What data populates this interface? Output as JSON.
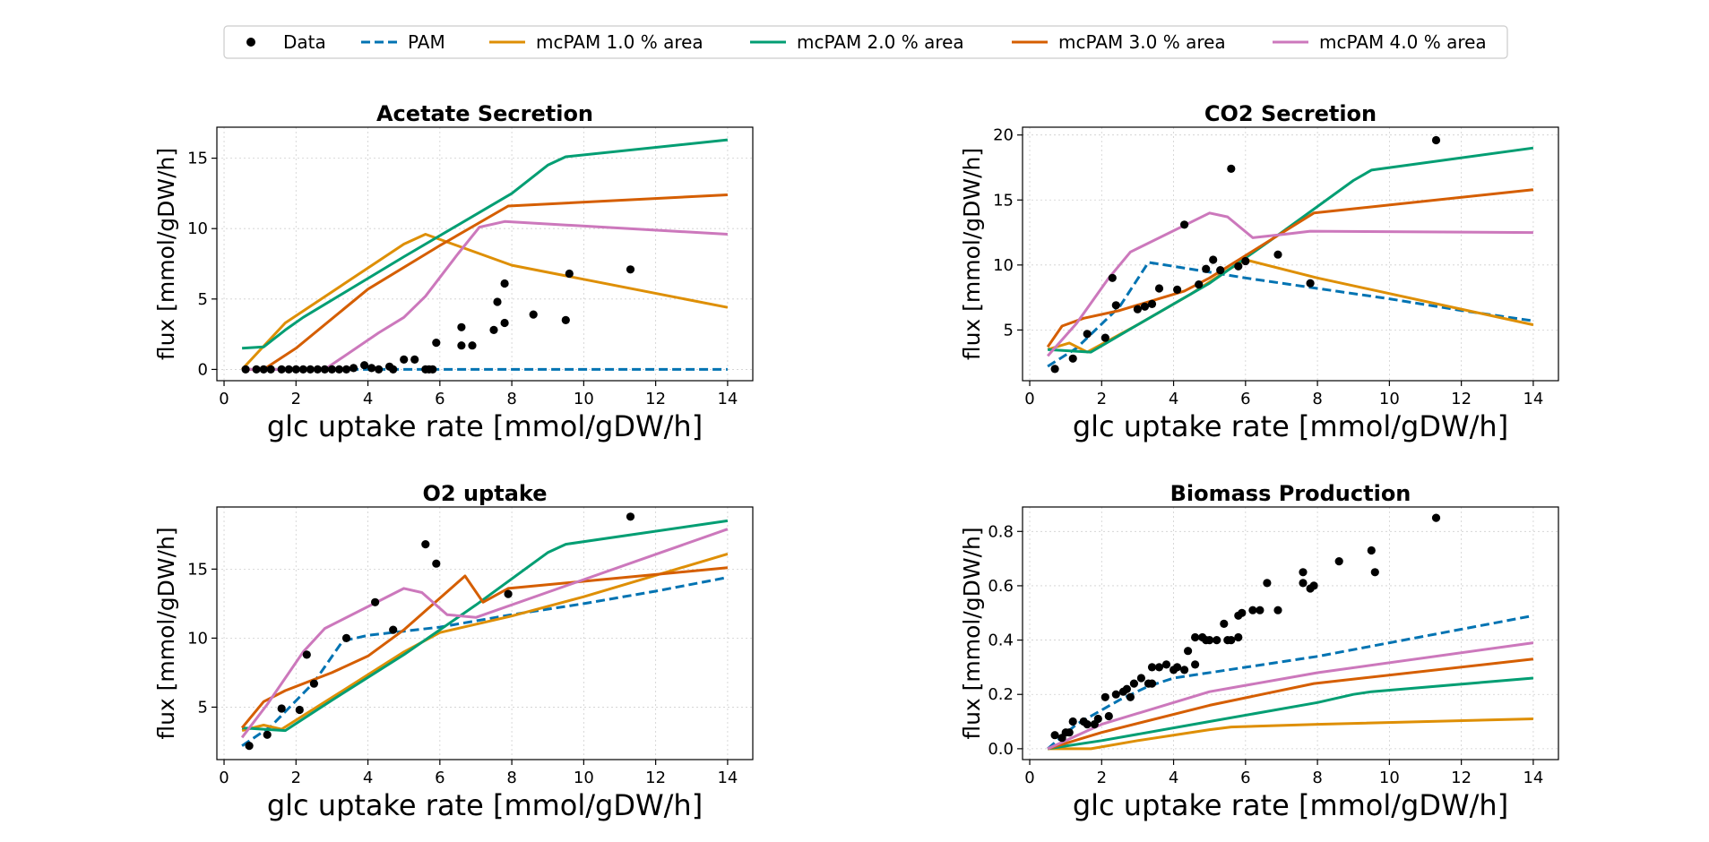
{
  "legend": {
    "entries": [
      {
        "label": "Data",
        "kind": "marker",
        "color": "#000000"
      },
      {
        "label": "PAM",
        "kind": "dashed",
        "color": "#0173b2"
      },
      {
        "label": "mcPAM 1.0 % area",
        "kind": "line",
        "color": "#de8f05"
      },
      {
        "label": "mcPAM 2.0 % area",
        "kind": "line",
        "color": "#029e73"
      },
      {
        "label": "mcPAM 3.0 % area",
        "kind": "line",
        "color": "#d55e00"
      },
      {
        "label": "mcPAM 4.0 % area",
        "kind": "line",
        "color": "#cc78bc"
      }
    ]
  },
  "chart_data": [
    {
      "type": "line",
      "title": "Acetate Secretion",
      "xlabel": "glc uptake rate [mmol/gDW/h]",
      "ylabel": "flux [mmol/gDW/h]",
      "xlim": [
        -0.2,
        14.7
      ],
      "ylim": [
        -0.8,
        17.2
      ],
      "xticks": [
        0,
        2,
        4,
        6,
        8,
        10,
        12,
        14
      ],
      "yticks": [
        0,
        5,
        10,
        15
      ],
      "grid": true,
      "scatter": {
        "name": "Data",
        "x": [
          0.6,
          0.9,
          1.1,
          1.3,
          1.6,
          1.8,
          2.0,
          2.2,
          2.4,
          2.6,
          2.8,
          3.0,
          3.2,
          3.4,
          3.6,
          3.9,
          4.1,
          4.3,
          4.6,
          4.7,
          5.0,
          5.3,
          5.6,
          5.7,
          5.8,
          5.9,
          6.6,
          6.6,
          6.9,
          7.5,
          7.6,
          7.8,
          7.8,
          8.6,
          9.5,
          9.6,
          11.3
        ],
        "y": [
          0.0,
          0.0,
          0.0,
          0.0,
          0.0,
          0.0,
          0.0,
          0.0,
          0.0,
          0.0,
          0.0,
          0.0,
          0.0,
          0.0,
          0.1,
          0.3,
          0.1,
          0.0,
          0.2,
          0.0,
          0.7,
          0.7,
          0.0,
          0.0,
          0.0,
          1.9,
          1.7,
          3.0,
          1.7,
          2.8,
          4.8,
          3.3,
          6.1,
          3.9,
          3.5,
          6.8,
          7.1
        ]
      },
      "series": [
        {
          "name": "PAM",
          "x": [
            0.5,
            2,
            4,
            6,
            8,
            10,
            12,
            14
          ],
          "y": [
            0,
            0,
            0,
            0,
            0,
            0,
            0,
            0
          ]
        },
        {
          "name": "mcPAM 1.0 % area",
          "x": [
            0.5,
            1.7,
            5.0,
            5.6,
            8.0,
            14.0
          ],
          "y": [
            0,
            3.3,
            8.9,
            9.6,
            7.4,
            4.4
          ]
        },
        {
          "name": "mcPAM 2.0 % area",
          "x": [
            0.5,
            1.1,
            1.7,
            2.2,
            5.0,
            8.0,
            9.0,
            9.5,
            14.0
          ],
          "y": [
            1.5,
            1.6,
            2.8,
            3.7,
            8.0,
            12.5,
            14.5,
            15.1,
            16.3
          ]
        },
        {
          "name": "mcPAM 3.0 % area",
          "x": [
            0.5,
            1.1,
            2.0,
            4.0,
            6.0,
            7.9,
            14.0
          ],
          "y": [
            0,
            0,
            1.5,
            5.7,
            8.8,
            11.6,
            12.4
          ]
        },
        {
          "name": "mcPAM 4.0 % area",
          "x": [
            0.5,
            2.0,
            2.8,
            4.3,
            5.0,
            5.6,
            6.5,
            7.1,
            7.8,
            14.0
          ],
          "y": [
            0,
            0,
            0,
            2.6,
            3.7,
            5.2,
            8.2,
            10.1,
            10.5,
            9.6
          ]
        }
      ]
    },
    {
      "type": "line",
      "title": "CO2 Secretion",
      "xlabel": "glc uptake rate [mmol/gDW/h]",
      "ylabel": "flux [mmol/gDW/h]",
      "xlim": [
        -0.2,
        14.7
      ],
      "ylim": [
        1.1,
        20.6
      ],
      "xticks": [
        0,
        2,
        4,
        6,
        8,
        10,
        12,
        14
      ],
      "yticks": [
        5,
        10,
        15,
        20
      ],
      "grid": true,
      "scatter": {
        "name": "Data",
        "x": [
          0.7,
          1.2,
          1.6,
          2.1,
          2.3,
          2.4,
          3.0,
          3.2,
          3.4,
          3.6,
          4.1,
          4.3,
          4.7,
          4.9,
          5.1,
          5.3,
          5.6,
          5.8,
          6.0,
          6.9,
          7.8,
          11.3
        ],
        "y": [
          2.0,
          2.8,
          4.7,
          4.4,
          9.0,
          6.9,
          6.6,
          6.8,
          7.0,
          8.2,
          8.1,
          13.1,
          8.5,
          9.7,
          10.4,
          9.6,
          17.4,
          9.9,
          10.3,
          10.8,
          8.6,
          19.6
        ]
      },
      "series": [
        {
          "name": "PAM",
          "x": [
            0.5,
            1.3,
            2.5,
            3.3,
            4.0,
            6.0,
            8.0,
            10.0,
            12.0,
            14.0
          ],
          "y": [
            2.2,
            3.6,
            6.8,
            10.2,
            9.9,
            9.0,
            8.2,
            7.4,
            6.5,
            5.7
          ]
        },
        {
          "name": "mcPAM 1.0 % area",
          "x": [
            0.5,
            1.1,
            1.6,
            3.0,
            4.5,
            5.5,
            6.0,
            8.0,
            14.0
          ],
          "y": [
            3.5,
            4.0,
            3.3,
            5.4,
            7.8,
            9.6,
            10.4,
            9.0,
            5.4
          ]
        },
        {
          "name": "mcPAM 2.0 % area",
          "x": [
            0.5,
            1.7,
            3.0,
            5.0,
            7.0,
            9.0,
            9.5,
            14.0
          ],
          "y": [
            3.5,
            3.3,
            5.4,
            8.6,
            12.5,
            16.5,
            17.3,
            19.0
          ]
        },
        {
          "name": "mcPAM 3.0 % area",
          "x": [
            0.5,
            0.9,
            1.5,
            2.5,
            4.3,
            5.0,
            7.9,
            14.0
          ],
          "y": [
            3.7,
            5.3,
            5.9,
            6.5,
            8.0,
            9.0,
            14.0,
            15.8
          ]
        },
        {
          "name": "mcPAM 4.0 % area",
          "x": [
            0.5,
            1.3,
            2.2,
            2.8,
            5.0,
            5.5,
            6.2,
            7.2,
            7.8,
            14.0
          ],
          "y": [
            3.0,
            5.5,
            9.0,
            11.0,
            14.0,
            13.7,
            12.1,
            12.4,
            12.6,
            12.5
          ]
        }
      ]
    },
    {
      "type": "line",
      "title": "O2 uptake",
      "xlabel": "glc uptake rate [mmol/gDW/h]",
      "ylabel": "flux [mmol/gDW/h]",
      "xlim": [
        -0.2,
        14.7
      ],
      "ylim": [
        1.2,
        19.5
      ],
      "xticks": [
        0,
        2,
        4,
        6,
        8,
        10,
        12,
        14
      ],
      "yticks": [
        5,
        10,
        15
      ],
      "grid": true,
      "scatter": {
        "name": "Data",
        "x": [
          0.7,
          1.2,
          1.6,
          2.1,
          2.3,
          2.5,
          3.4,
          4.2,
          4.7,
          5.6,
          5.9,
          7.9,
          11.3
        ],
        "y": [
          2.2,
          3.0,
          4.9,
          4.8,
          8.8,
          6.7,
          10.0,
          12.6,
          10.6,
          16.8,
          15.4,
          13.2,
          18.8
        ]
      },
      "series": [
        {
          "name": "PAM",
          "x": [
            0.5,
            1.3,
            2.5,
            3.3,
            4.0,
            6.0,
            8.0,
            10.0,
            12.0,
            14.0
          ],
          "y": [
            2.2,
            3.6,
            6.8,
            9.8,
            10.2,
            10.8,
            11.7,
            12.5,
            13.4,
            14.4
          ]
        },
        {
          "name": "mcPAM 1.0 % area",
          "x": [
            0.5,
            1.1,
            1.6,
            3.0,
            5.0,
            6.0,
            8.0,
            10.0,
            14.0
          ],
          "y": [
            3.3,
            3.7,
            3.4,
            5.7,
            9.0,
            10.4,
            11.6,
            13.0,
            16.1
          ]
        },
        {
          "name": "mcPAM 2.0 % area",
          "x": [
            0.5,
            1.7,
            3.0,
            5.0,
            7.0,
            9.0,
            9.5,
            14.0
          ],
          "y": [
            3.5,
            3.3,
            5.5,
            8.8,
            12.4,
            16.2,
            16.8,
            18.5
          ]
        },
        {
          "name": "mcPAM 3.0 % area",
          "x": [
            0.5,
            1.1,
            1.7,
            3.0,
            4.0,
            5.0,
            6.7,
            7.2,
            7.9,
            14.0
          ],
          "y": [
            3.5,
            5.4,
            6.2,
            7.5,
            8.7,
            10.6,
            14.5,
            12.6,
            13.6,
            15.1
          ]
        },
        {
          "name": "mcPAM 4.0 % area",
          "x": [
            0.5,
            1.2,
            2.2,
            2.8,
            5.0,
            5.5,
            6.2,
            7.0,
            14.0
          ],
          "y": [
            2.8,
            5.2,
            9.0,
            10.7,
            13.6,
            13.3,
            11.7,
            11.5,
            17.9
          ]
        }
      ]
    },
    {
      "type": "line",
      "title": "Biomass Production",
      "xlabel": "glc uptake rate [mmol/gDW/h]",
      "ylabel": "flux [mmol/gDW/h]",
      "xlim": [
        -0.2,
        14.7
      ],
      "ylim": [
        -0.04,
        0.89
      ],
      "xticks": [
        0,
        2,
        4,
        6,
        8,
        10,
        12,
        14
      ],
      "yticks": [
        0.0,
        0.2,
        0.4,
        0.6,
        0.8
      ],
      "grid": true,
      "scatter": {
        "name": "Data",
        "x": [
          0.7,
          0.9,
          1.0,
          1.1,
          1.2,
          1.5,
          1.6,
          1.8,
          1.9,
          2.1,
          2.2,
          2.4,
          2.6,
          2.7,
          2.8,
          2.9,
          3.1,
          3.3,
          3.4,
          3.4,
          3.6,
          3.8,
          4.0,
          4.1,
          4.3,
          4.4,
          4.6,
          4.6,
          4.8,
          4.9,
          5.0,
          5.2,
          5.4,
          5.5,
          5.6,
          5.8,
          5.8,
          5.9,
          6.2,
          6.4,
          6.6,
          6.9,
          7.6,
          7.6,
          7.8,
          7.9,
          8.6,
          9.5,
          9.6,
          11.3
        ],
        "y": [
          0.05,
          0.04,
          0.06,
          0.06,
          0.1,
          0.1,
          0.09,
          0.09,
          0.11,
          0.19,
          0.12,
          0.2,
          0.21,
          0.22,
          0.19,
          0.24,
          0.26,
          0.24,
          0.3,
          0.24,
          0.3,
          0.31,
          0.29,
          0.3,
          0.29,
          0.36,
          0.31,
          0.41,
          0.41,
          0.4,
          0.4,
          0.4,
          0.46,
          0.4,
          0.4,
          0.41,
          0.49,
          0.5,
          0.51,
          0.51,
          0.61,
          0.51,
          0.61,
          0.65,
          0.59,
          0.6,
          0.69,
          0.73,
          0.65,
          0.85
        ]
      },
      "series": [
        {
          "name": "PAM",
          "x": [
            0.5,
            1.3,
            2.5,
            3.3,
            4.0,
            6.0,
            8.0,
            10.0,
            12.0,
            14.0
          ],
          "y": [
            0.0,
            0.09,
            0.18,
            0.23,
            0.26,
            0.3,
            0.34,
            0.39,
            0.44,
            0.49
          ]
        },
        {
          "name": "mcPAM 1.0 % area",
          "x": [
            0.5,
            1.7,
            3.0,
            5.0,
            5.6,
            8.0,
            14.0
          ],
          "y": [
            0.0,
            0.0,
            0.03,
            0.07,
            0.08,
            0.09,
            0.11
          ]
        },
        {
          "name": "mcPAM 2.0 % area",
          "x": [
            0.5,
            2.0,
            5.0,
            8.0,
            9.0,
            9.5,
            14.0
          ],
          "y": [
            0.0,
            0.03,
            0.1,
            0.17,
            0.2,
            0.21,
            0.26
          ]
        },
        {
          "name": "mcPAM 3.0 % area",
          "x": [
            0.5,
            2.0,
            5.0,
            7.9,
            14.0
          ],
          "y": [
            0.0,
            0.06,
            0.16,
            0.24,
            0.33
          ]
        },
        {
          "name": "mcPAM 4.0 % area",
          "x": [
            0.5,
            2.0,
            5.0,
            8.0,
            14.0
          ],
          "y": [
            0.0,
            0.09,
            0.21,
            0.28,
            0.39
          ]
        }
      ]
    }
  ]
}
